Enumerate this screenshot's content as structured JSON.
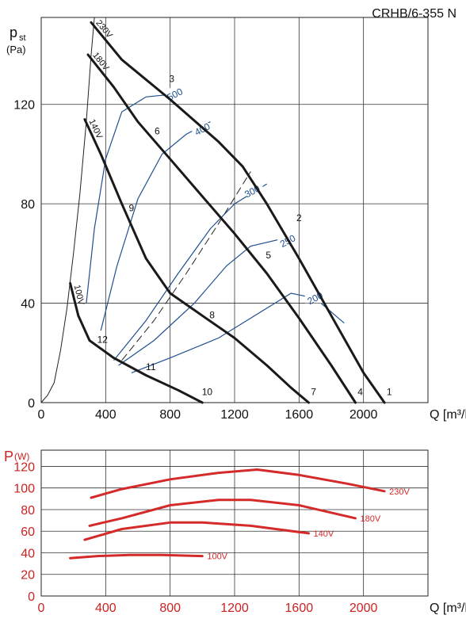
{
  "model_title": "CRHB/6-355 N",
  "chart_data": [
    {
      "type": "line",
      "name": "pressure",
      "ylabel_main": "p",
      "ylabel_sub": "st",
      "ylabel_unit": "(Pa)",
      "xlabel": "Q [m³/h]",
      "xlim": [
        0,
        2400
      ],
      "ylim": [
        0,
        155
      ],
      "x_ticks": [
        0,
        400,
        800,
        1200,
        1600,
        2000
      ],
      "y_ticks": [
        0,
        40,
        80,
        120
      ],
      "grid": true,
      "colors": {
        "fan": "#1a1a1a",
        "rpm": "#1f4f8f",
        "system": "#222222"
      },
      "fan_curves": [
        {
          "label": "230V",
          "points": [
            [
              310,
              153
            ],
            [
              500,
              138
            ],
            [
              800,
              122
            ],
            [
              1100,
              105
            ],
            [
              1250,
              95
            ],
            [
              1400,
              80
            ],
            [
              1600,
              58
            ],
            [
              1800,
              35
            ],
            [
              2000,
              12
            ],
            [
              2130,
              0
            ]
          ]
        },
        {
          "label": "180V",
          "points": [
            [
              290,
              140
            ],
            [
              450,
              127
            ],
            [
              600,
              113
            ],
            [
              800,
              98
            ],
            [
              1000,
              83
            ],
            [
              1200,
              68
            ],
            [
              1400,
              52
            ],
            [
              1600,
              34
            ],
            [
              1800,
              15
            ],
            [
              1950,
              0
            ]
          ]
        },
        {
          "label": "140V",
          "points": [
            [
              270,
              114
            ],
            [
              370,
              100
            ],
            [
              500,
              80
            ],
            [
              650,
              58
            ],
            [
              800,
              44
            ],
            [
              1000,
              35
            ],
            [
              1200,
              26
            ],
            [
              1400,
              15
            ],
            [
              1550,
              6
            ],
            [
              1660,
              0
            ]
          ]
        },
        {
          "label": "100V",
          "points": [
            [
              180,
              48
            ],
            [
              230,
              35
            ],
            [
              300,
              25
            ],
            [
              450,
              18
            ],
            [
              650,
              11
            ],
            [
              850,
              5
            ],
            [
              1000,
              0
            ]
          ]
        }
      ],
      "rpm_curves": [
        {
          "label": "500",
          "label_pos": [
            830,
            124
          ],
          "points": [
            [
              280,
              40
            ],
            [
              330,
              70
            ],
            [
              400,
              98
            ],
            [
              500,
              117
            ],
            [
              650,
              123
            ],
            [
              800,
              124
            ]
          ]
        },
        {
          "label": "400",
          "label_pos": [
            1000,
            110
          ],
          "points": [
            [
              370,
              29
            ],
            [
              470,
              55
            ],
            [
              600,
              82
            ],
            [
              750,
              100
            ],
            [
              900,
              108
            ],
            [
              1050,
              113
            ]
          ]
        },
        {
          "label": "300",
          "label_pos": [
            1310,
            85
          ],
          "points": [
            [
              450,
              17
            ],
            [
              650,
              33
            ],
            [
              850,
              52
            ],
            [
              1050,
              70
            ],
            [
              1200,
              80
            ],
            [
              1400,
              88
            ]
          ]
        },
        {
          "label": "250",
          "label_pos": [
            1530,
            65
          ],
          "points": [
            [
              480,
              15
            ],
            [
              700,
              25
            ],
            [
              950,
              40
            ],
            [
              1150,
              55
            ],
            [
              1300,
              63
            ],
            [
              1500,
              66
            ]
          ]
        },
        {
          "label": "200",
          "label_pos": [
            1700,
            42
          ],
          "points": [
            [
              560,
              12
            ],
            [
              800,
              18
            ],
            [
              1100,
              26
            ],
            [
              1350,
              36
            ],
            [
              1550,
              44
            ],
            [
              1700,
              42
            ],
            [
              1880,
              32
            ]
          ]
        }
      ],
      "system_curves": [
        {
          "style": "solid",
          "points": [
            [
              0,
              0
            ],
            [
              40,
              3
            ],
            [
              80,
              8
            ],
            [
              120,
              21
            ],
            [
              160,
              38
            ],
            [
              200,
              60
            ],
            [
              240,
              84
            ],
            [
              280,
              113
            ],
            [
              310,
              140
            ],
            [
              330,
              155
            ]
          ]
        },
        {
          "style": "dashed",
          "points": [
            [
              500,
              17
            ],
            [
              700,
              33
            ],
            [
              900,
              52
            ],
            [
              1100,
              72
            ],
            [
              1300,
              93
            ]
          ]
        }
      ],
      "point_labels": [
        {
          "text": "1",
          "x": 2160,
          "y": 3
        },
        {
          "text": "2",
          "x": 1600,
          "y": 73
        },
        {
          "text": "3",
          "x": 810,
          "y": 129
        },
        {
          "text": "4",
          "x": 1980,
          "y": 3
        },
        {
          "text": "5",
          "x": 1410,
          "y": 58
        },
        {
          "text": "6",
          "x": 720,
          "y": 108
        },
        {
          "text": "7",
          "x": 1690,
          "y": 3
        },
        {
          "text": "8",
          "x": 1060,
          "y": 34
        },
        {
          "text": "9",
          "x": 560,
          "y": 77
        },
        {
          "text": "10",
          "x": 1030,
          "y": 3
        },
        {
          "text": "11",
          "x": 680,
          "y": 13
        },
        {
          "text": "12",
          "x": 380,
          "y": 24
        }
      ]
    },
    {
      "type": "line",
      "name": "power",
      "ylabel_main": "P",
      "ylabel_unit": "(W)",
      "xlabel": "Q [m³/h]",
      "xlim": [
        0,
        2400
      ],
      "ylim": [
        0,
        135
      ],
      "x_ticks": [
        0,
        400,
        800,
        1200,
        1600,
        2000
      ],
      "y_ticks": [
        0,
        20,
        40,
        60,
        80,
        100,
        120
      ],
      "grid": true,
      "colors": {
        "curve": "#d42a2a",
        "tick_labels": "#cc2222"
      },
      "series": [
        {
          "label": "230V",
          "points": [
            [
              310,
              91
            ],
            [
              500,
              99
            ],
            [
              800,
              108
            ],
            [
              1100,
              114
            ],
            [
              1340,
              117
            ],
            [
              1600,
              112
            ],
            [
              1900,
              104
            ],
            [
              2130,
              97
            ]
          ]
        },
        {
          "label": "180V",
          "points": [
            [
              300,
              65
            ],
            [
              500,
              72
            ],
            [
              800,
              84
            ],
            [
              1100,
              89
            ],
            [
              1300,
              89
            ],
            [
              1600,
              84
            ],
            [
              1950,
              72
            ]
          ]
        },
        {
          "label": "140V",
          "points": [
            [
              270,
              52
            ],
            [
              500,
              62
            ],
            [
              800,
              68
            ],
            [
              1000,
              68
            ],
            [
              1300,
              65
            ],
            [
              1660,
              58
            ]
          ]
        },
        {
          "label": "100V",
          "points": [
            [
              180,
              35
            ],
            [
              350,
              37
            ],
            [
              550,
              38
            ],
            [
              750,
              38
            ],
            [
              1000,
              37
            ]
          ]
        }
      ]
    }
  ]
}
